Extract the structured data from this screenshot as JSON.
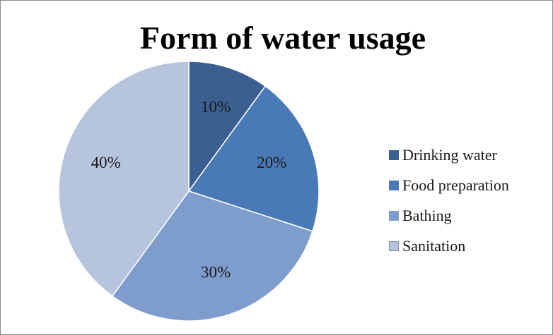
{
  "chart_data": {
    "type": "pie",
    "title": "Form of water usage",
    "categories": [
      "Drinking water",
      "Food preparation",
      "Bathing",
      "Sanitation"
    ],
    "values": [
      10,
      20,
      30,
      40
    ],
    "labels": [
      "10%",
      "20%",
      "30%",
      "40%"
    ],
    "colors": [
      "#3c5f91",
      "#4a7ab5",
      "#7e9ccc",
      "#b6c4de"
    ],
    "legend_position": "right",
    "start_angle": "12 o'clock",
    "direction": "clockwise"
  }
}
